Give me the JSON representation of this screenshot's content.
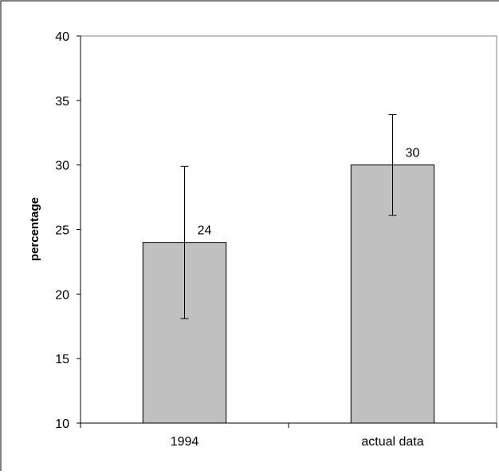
{
  "chart_data": {
    "type": "bar",
    "title": "",
    "xlabel": "",
    "ylabel": "percentage",
    "ylim": [
      10,
      40
    ],
    "yticks": [
      10,
      15,
      20,
      25,
      30,
      35,
      40
    ],
    "grid": false,
    "categories": [
      "1994",
      "actual data"
    ],
    "values": [
      24,
      30
    ],
    "error_bars": [
      {
        "low": 18.1,
        "high": 29.9
      },
      {
        "low": 26.1,
        "high": 33.9
      }
    ],
    "data_labels": [
      "24",
      "30"
    ],
    "colors": {
      "bar_fill": "#c0c0c0",
      "bar_stroke": "#000000",
      "axis": "#000000",
      "frame": "#000000"
    }
  }
}
